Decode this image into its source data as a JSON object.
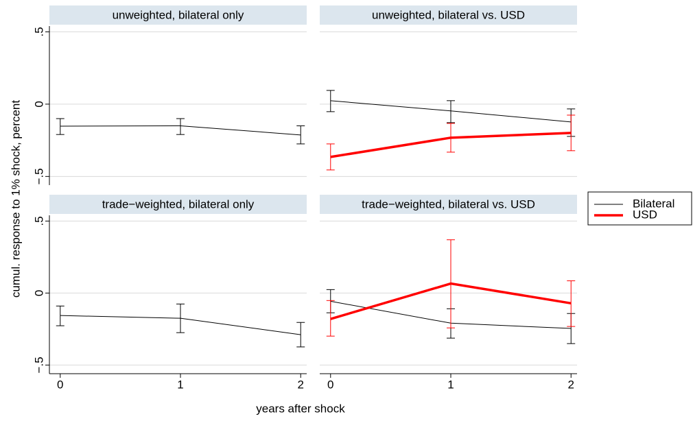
{
  "chart_data": {
    "type": "line",
    "ylabel": "cumul. response to 1% shock, percent",
    "xlabel": "years after shock",
    "x": [
      0,
      1,
      2
    ],
    "xlim": [
      -0.09,
      2.05
    ],
    "xticks": [
      0,
      1,
      2
    ],
    "ylim": [
      -0.56,
      0.54
    ],
    "yticks": [
      {
        "value": -0.5,
        "label": "−.5"
      },
      0,
      {
        "value": 0.5,
        "label": ".5"
      }
    ],
    "grid": true,
    "legend": "right",
    "series": [
      {
        "name": "Bilateral",
        "color": "#000000",
        "width": 1
      },
      {
        "name": "USD",
        "color": "#ff0000",
        "width": 3.5
      }
    ],
    "panels": [
      {
        "title": "unweighted, bilateral only",
        "lines": [
          {
            "values": [
              -0.152,
              -0.15,
              -0.213
            ],
            "lower": [
              -0.21,
              -0.21,
              -0.275
            ],
            "upper": [
              -0.1,
              -0.1,
              -0.15
            ]
          }
        ]
      },
      {
        "title": "unweighted, bilateral vs. USD",
        "lines": [
          {
            "values": [
              0.024,
              -0.047,
              -0.123
            ],
            "lower": [
              -0.052,
              -0.128,
              -0.223
            ],
            "upper": [
              0.095,
              0.024,
              -0.033
            ]
          },
          {
            "values": [
              -0.365,
              -0.232,
              -0.199
            ],
            "lower": [
              -0.455,
              -0.332,
              -0.322
            ],
            "upper": [
              -0.275,
              -0.133,
              -0.076
            ]
          }
        ]
      },
      {
        "title": "trade−weighted, bilateral only",
        "lines": [
          {
            "values": [
              -0.156,
              -0.175,
              -0.289
            ],
            "lower": [
              -0.227,
              -0.275,
              -0.374
            ],
            "upper": [
              -0.09,
              -0.076,
              -0.204
            ]
          }
        ]
      },
      {
        "title": "trade−weighted, bilateral vs. USD",
        "lines": [
          {
            "values": [
              -0.057,
              -0.209,
              -0.246
            ],
            "lower": [
              -0.137,
              -0.313,
              -0.351
            ],
            "upper": [
              0.024,
              -0.109,
              -0.142
            ]
          },
          {
            "values": [
              -0.18,
              0.066,
              -0.071
            ],
            "lower": [
              -0.299,
              -0.242,
              -0.232
            ],
            "upper": [
              -0.052,
              0.37,
              0.085
            ]
          }
        ]
      }
    ]
  }
}
